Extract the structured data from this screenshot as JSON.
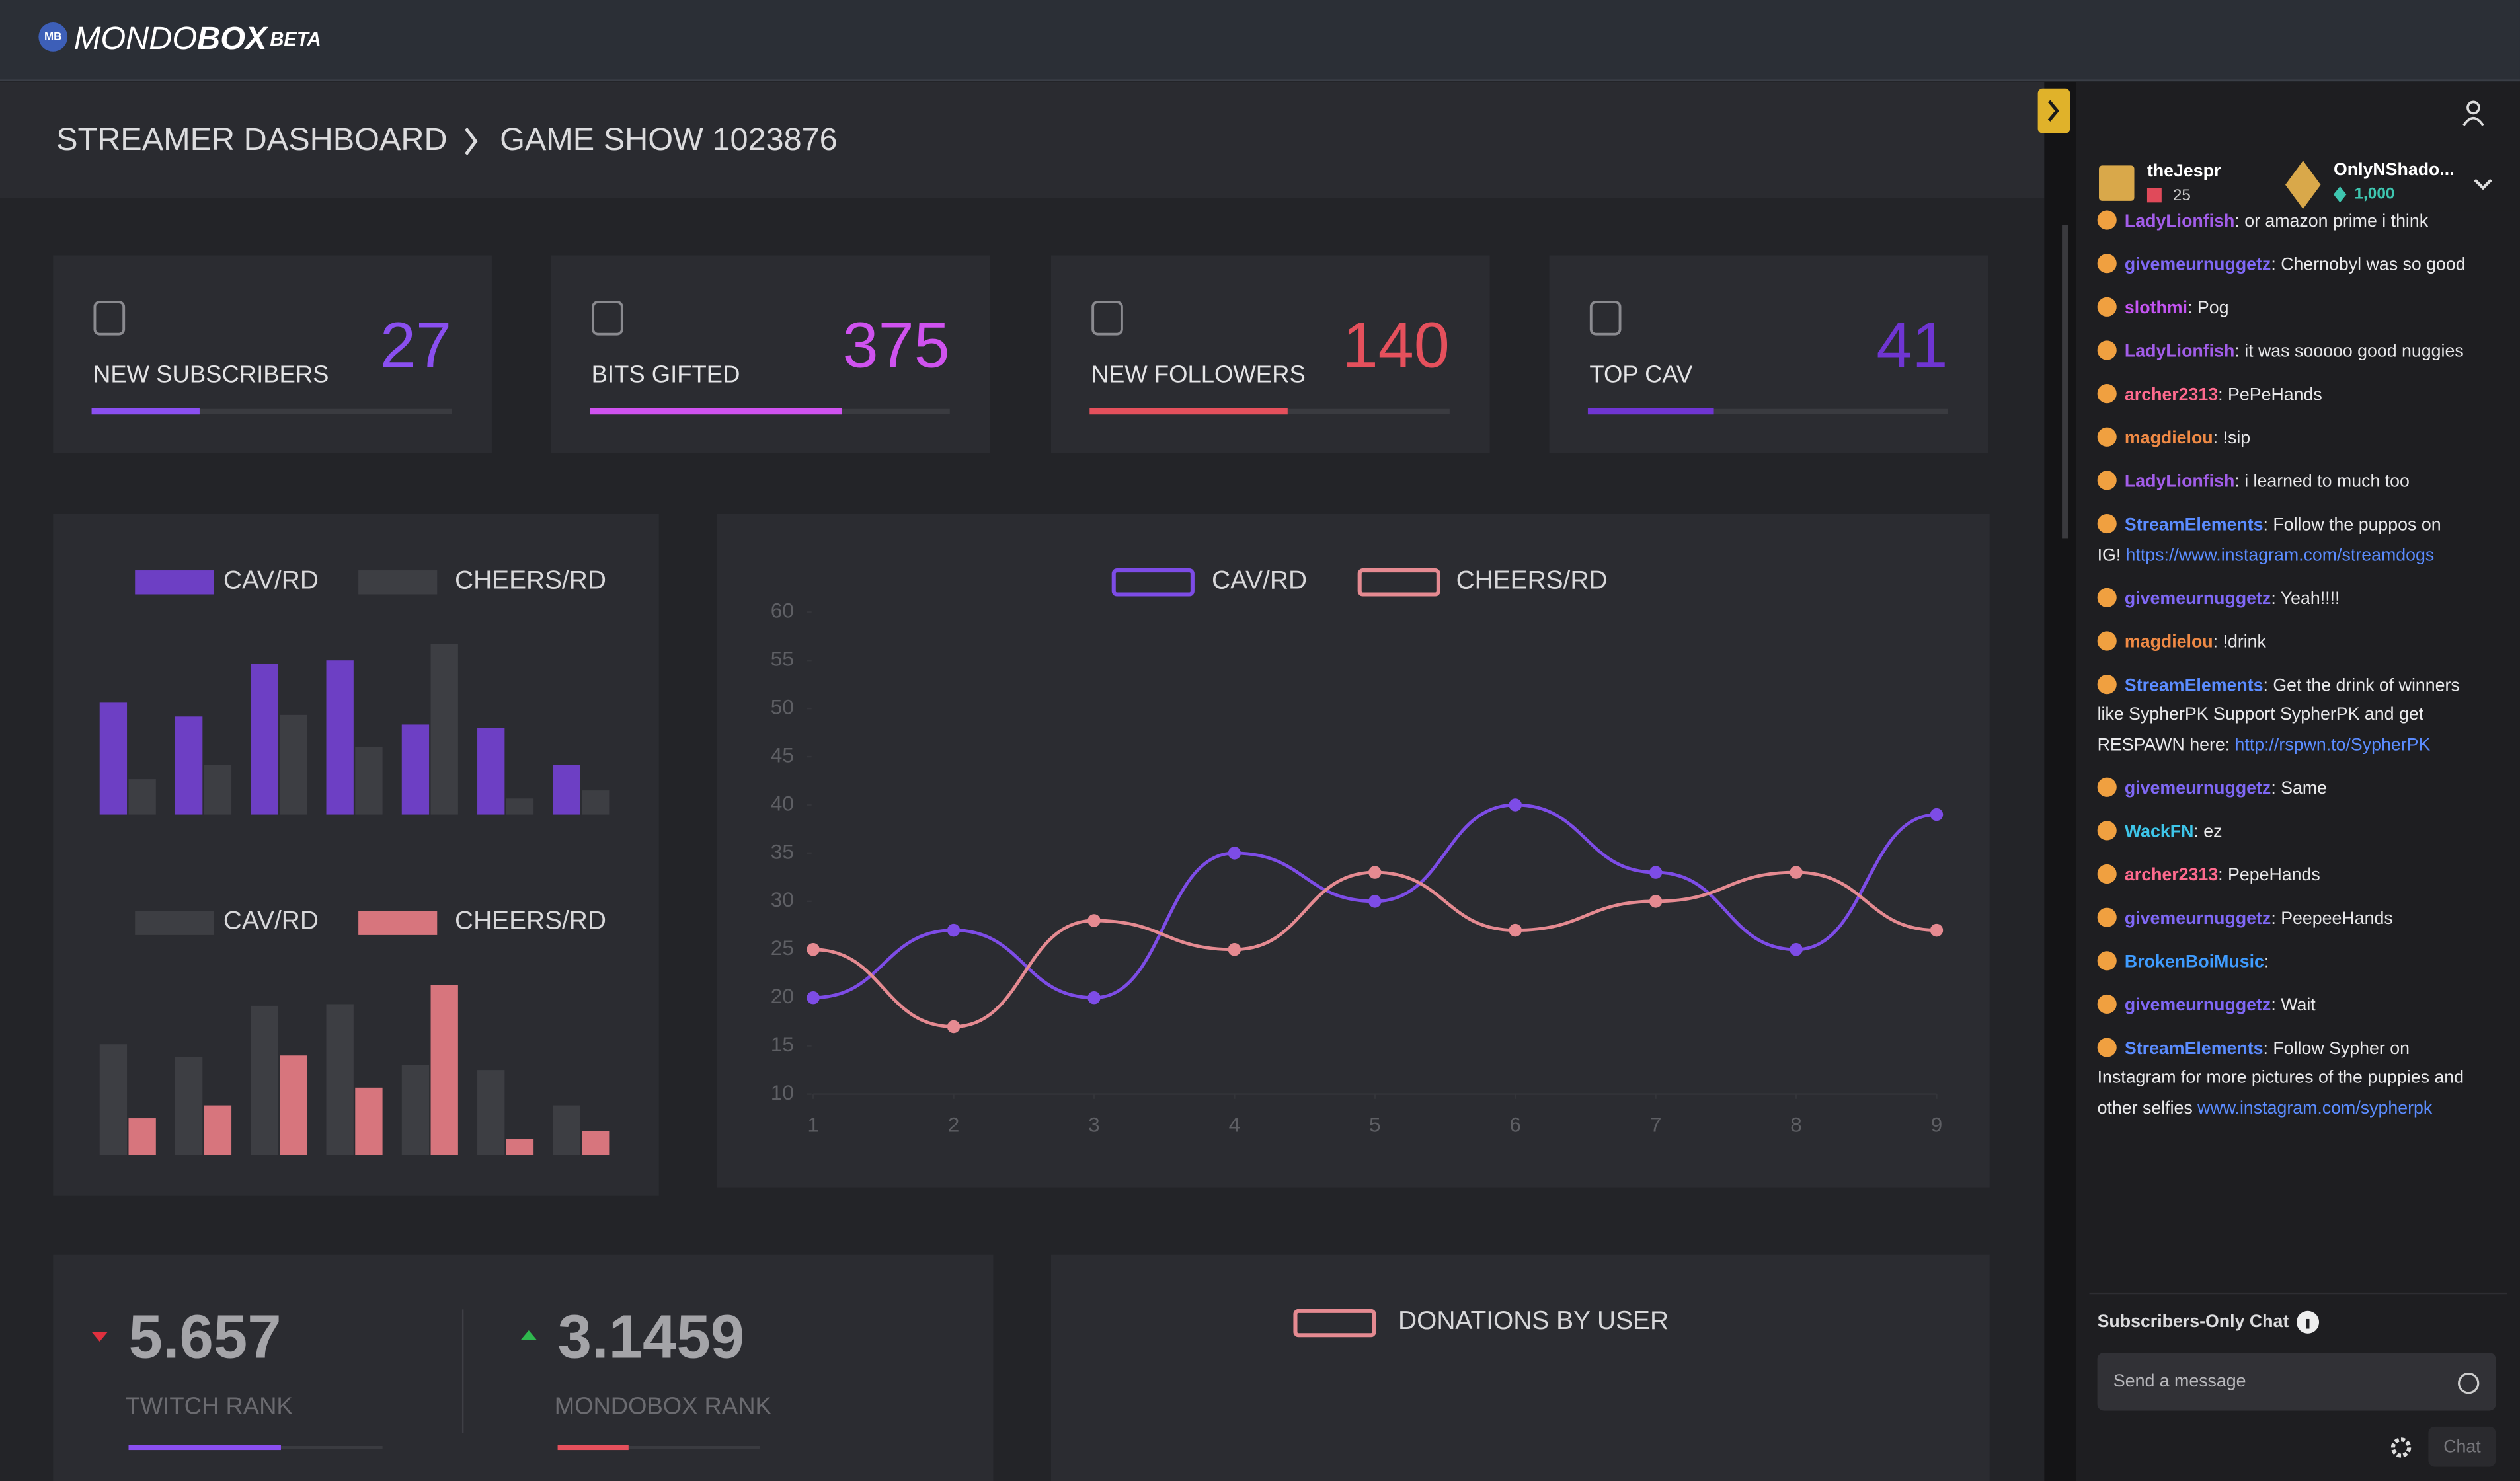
{
  "header": {
    "icon": "MB",
    "brand": [
      "MONDO",
      "BOX"
    ],
    "badge": "BETA"
  },
  "breadcrumb": [
    "STREAMER DASHBOARD",
    "GAME SHOW 1023876"
  ],
  "stats": [
    {
      "label": "NEW SUBSCRIBERS",
      "value": 27,
      "color": "#8a4ff0",
      "progress": 30
    },
    {
      "label": "BITS GIFTED",
      "value": 375,
      "color": "#cf52ef",
      "progress": 70
    },
    {
      "label": "NEW FOLLOWERS",
      "value": 140,
      "color": "#e5505c",
      "progress": 55
    },
    {
      "label": "TOP CAV",
      "value": 41,
      "color": "#6f35d2",
      "progress": 35
    }
  ],
  "chart_data": [
    {
      "type": "bar",
      "categories": [
        null,
        null,
        null,
        null,
        null,
        null,
        null
      ],
      "ylim": [
        0,
        110
      ],
      "series": [
        {
          "name": "CAV/RD",
          "color": "#6d3fc4",
          "values": [
            70,
            61,
            94,
            96,
            56,
            54,
            31
          ]
        },
        {
          "name": "CHEERS/RD",
          "color": "#3d3e43",
          "values": [
            22,
            31,
            62,
            42,
            106,
            10,
            15
          ]
        }
      ]
    },
    {
      "type": "bar",
      "categories": [
        null,
        null,
        null,
        null,
        null,
        null,
        null
      ],
      "ylim": [
        0,
        110
      ],
      "series": [
        {
          "name": "CAV/RD",
          "color": "#3d3e43",
          "values": [
            69,
            61,
            93,
            94,
            56,
            53,
            31
          ]
        },
        {
          "name": "CHEERS/RD",
          "color": "#d7757d",
          "values": [
            23,
            31,
            62,
            42,
            106,
            10,
            15
          ]
        }
      ]
    },
    {
      "type": "line",
      "x": [
        1,
        2,
        3,
        4,
        5,
        6,
        7,
        8,
        9
      ],
      "xlim": [
        1,
        9
      ],
      "xticks": [
        1,
        2,
        3,
        4,
        5,
        6,
        7,
        8,
        9
      ],
      "ylim": [
        10,
        60
      ],
      "yticks": [
        10,
        15,
        20,
        25,
        30,
        35,
        40,
        45,
        50,
        55,
        60
      ],
      "series": [
        {
          "name": "CAV/RD",
          "color": "#7d4ce6",
          "values": [
            20,
            27,
            20,
            35,
            30,
            40,
            33,
            25,
            39
          ]
        },
        {
          "name": "CHEERS/RD",
          "color": "#e58a91",
          "values": [
            25,
            17,
            28,
            25,
            33,
            27,
            30,
            33,
            27
          ]
        }
      ]
    },
    {
      "type": "bar",
      "categories": [],
      "series": [
        {
          "name": "DONATIONS BY USER",
          "color": "#e58a91",
          "values": []
        }
      ]
    }
  ],
  "ranks": [
    {
      "value": 5.657,
      "label": "TWITCH RANK",
      "trend": "down",
      "color": "#8a4ff0",
      "progress": 60
    },
    {
      "value": 3.1459,
      "label": "MONDOBOX RANK",
      "trend": "up",
      "color": "#e5505c",
      "progress": 35
    }
  ],
  "chat": {
    "top_users": [
      {
        "name": "theJespr",
        "count": 25
      },
      {
        "name": "OnlyNShado...",
        "count": "1,000"
      }
    ],
    "messages": [
      {
        "user": "LadyLionfish",
        "color": "#a25de8",
        "text": ": or amazon prime i think"
      },
      {
        "user": "givemeurnuggetz",
        "color": "#7f68f5",
        "text": ": Chernobyl was so good"
      },
      {
        "user": "slothmi",
        "color": "#c454f2",
        "text": ": Pog"
      },
      {
        "user": "LadyLionfish",
        "color": "#a25de8",
        "text": ": it was sooooo good nuggies"
      },
      {
        "user": "archer2313",
        "color": "#ff6a8e",
        "text": ": PePeHands"
      },
      {
        "user": "magdielou",
        "color": "#f08a45",
        "text": ": !sip"
      },
      {
        "user": "LadyLionfish",
        "color": "#a25de8",
        "text": ": i learned to much too"
      },
      {
        "user": "StreamElements",
        "color": "#5b8cff",
        "text": ": Follow the puppos on IG!",
        "link": "https://www.instagram.com/streamdogs"
      },
      {
        "user": "givemeurnuggetz",
        "color": "#7f68f5",
        "text": ": Yeah!!!!"
      },
      {
        "user": "magdielou",
        "color": "#f08a45",
        "text": ": !drink"
      },
      {
        "user": "StreamElements",
        "color": "#5b8cff",
        "text": ": Get the drink of winners like SypherPK Support SypherPK and get RESPAWN here:",
        "link": "http://rspwn.to/SypherPK"
      },
      {
        "user": "givemeurnuggetz",
        "color": "#7f68f5",
        "text": ": Same"
      },
      {
        "user": "WackFN",
        "color": "#3ec6ea",
        "text": ": ez"
      },
      {
        "user": "archer2313",
        "color": "#ff6a8e",
        "text": ": PepeHands"
      },
      {
        "user": "givemeurnuggetz",
        "color": "#7f68f5",
        "text": ": PeepeeHands"
      },
      {
        "user": "BrokenBoiMusic",
        "color": "#3f9cff",
        "text": ":"
      },
      {
        "user": "givemeurnuggetz",
        "color": "#7f68f5",
        "text": ": Wait"
      },
      {
        "user": "StreamElements",
        "color": "#5b8cff",
        "text": ": Follow Sypher on Instagram for more pictures of the puppies and other selfies",
        "link": "www.instagram.com/sypherpk"
      }
    ],
    "mode": "Subscribers-Only Chat",
    "placeholder": "Send a message",
    "button": "Chat"
  }
}
